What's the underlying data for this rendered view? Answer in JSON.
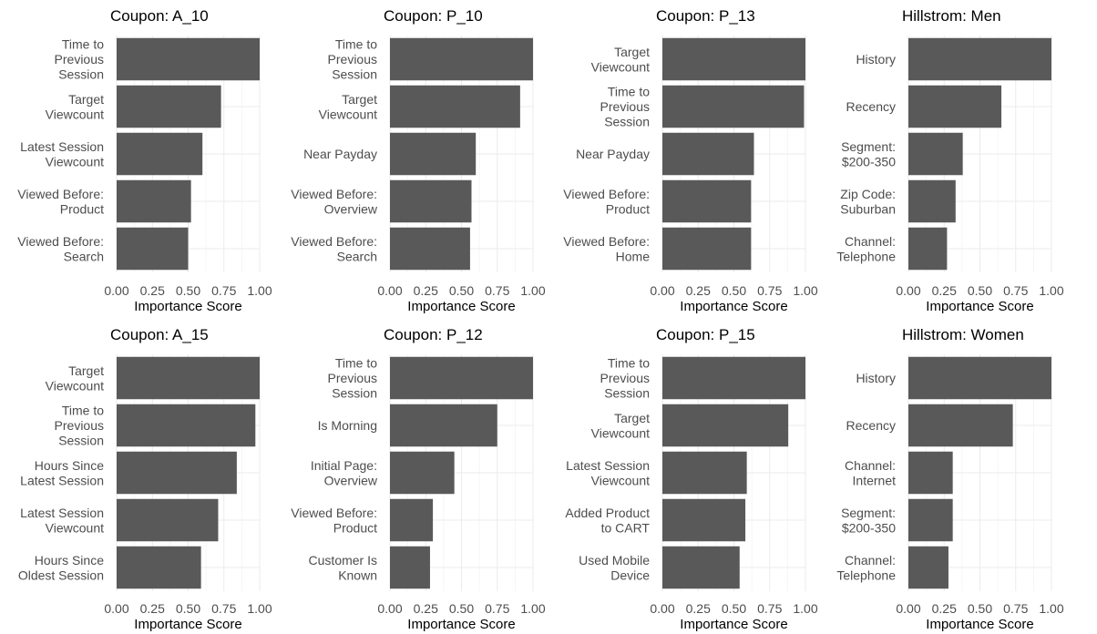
{
  "colors": {
    "bar": "#595959",
    "grid_major": "#ebebeb",
    "grid_minor": "#f3f3f3",
    "text": "#4d4d4d"
  },
  "chart_data": [
    {
      "type": "bar",
      "orientation": "horizontal",
      "title": "Coupon: A_10",
      "xlabel": "Importance Score",
      "xlim": [
        0,
        1
      ],
      "xticks": [
        "0.00",
        "0.25",
        "0.50",
        "0.75",
        "1.00"
      ],
      "categories": [
        "Time to\nPrevious\nSession",
        "Target\nViewcount",
        "Latest Session\nViewcount",
        "Viewed Before:\nProduct",
        "Viewed Before:\nSearch"
      ],
      "values": [
        1.0,
        0.73,
        0.6,
        0.52,
        0.5
      ]
    },
    {
      "type": "bar",
      "orientation": "horizontal",
      "title": "Coupon: P_10",
      "xlabel": "Importance Score",
      "xlim": [
        0,
        1
      ],
      "xticks": [
        "0.00",
        "0.25",
        "0.50",
        "0.75",
        "1.00"
      ],
      "categories": [
        "Time to\nPrevious\nSession",
        "Target\nViewcount",
        "Near Payday",
        "Viewed Before:\nOverview",
        "Viewed Before:\nSearch"
      ],
      "values": [
        1.0,
        0.91,
        0.6,
        0.57,
        0.56
      ]
    },
    {
      "type": "bar",
      "orientation": "horizontal",
      "title": "Coupon: P_13",
      "xlabel": "Importance Score",
      "xlim": [
        0,
        1
      ],
      "xticks": [
        "0.00",
        "0.25",
        "0.50",
        "0.75",
        "1.00"
      ],
      "categories": [
        "Target\nViewcount",
        "Time to\nPrevious\nSession",
        "Near Payday",
        "Viewed Before:\nProduct",
        "Viewed Before:\nHome"
      ],
      "values": [
        1.0,
        0.99,
        0.64,
        0.62,
        0.62
      ]
    },
    {
      "type": "bar",
      "orientation": "horizontal",
      "title": "Hillstrom: Men",
      "xlabel": "Importance Score",
      "xlim": [
        0,
        1
      ],
      "xticks": [
        "0.00",
        "0.25",
        "0.50",
        "0.75",
        "1.00"
      ],
      "categories": [
        "History",
        "Recency",
        "Segment:\n$200-350",
        "Zip Code:\nSuburban",
        "Channel:\nTelephone"
      ],
      "values": [
        1.0,
        0.65,
        0.38,
        0.33,
        0.27
      ]
    },
    {
      "type": "bar",
      "orientation": "horizontal",
      "title": "Coupon: A_15",
      "xlabel": "Importance Score",
      "xlim": [
        0,
        1
      ],
      "xticks": [
        "0.00",
        "0.25",
        "0.50",
        "0.75",
        "1.00"
      ],
      "categories": [
        "Target\nViewcount",
        "Time to\nPrevious\nSession",
        "Hours Since\nLatest Session",
        "Latest Session\nViewcount",
        "Hours Since\nOldest Session"
      ],
      "values": [
        1.0,
        0.97,
        0.84,
        0.71,
        0.59
      ]
    },
    {
      "type": "bar",
      "orientation": "horizontal",
      "title": "Coupon: P_12",
      "xlabel": "Importance Score",
      "xlim": [
        0,
        1
      ],
      "xticks": [
        "0.00",
        "0.25",
        "0.50",
        "0.75",
        "1.00"
      ],
      "categories": [
        "Time to\nPrevious\nSession",
        "Is Morning",
        "Initial Page:\nOverview",
        "Viewed Before:\nProduct",
        "Customer Is\nKnown"
      ],
      "values": [
        1.0,
        0.75,
        0.45,
        0.3,
        0.28
      ]
    },
    {
      "type": "bar",
      "orientation": "horizontal",
      "title": "Coupon: P_15",
      "xlabel": "Importance Score",
      "xlim": [
        0,
        1
      ],
      "xticks": [
        "0.00",
        "0.25",
        "0.50",
        "0.75",
        "1.00"
      ],
      "categories": [
        "Time to\nPrevious\nSession",
        "Target\nViewcount",
        "Latest Session\nViewcount",
        "Added Product\nto CART",
        "Used Mobile\nDevice"
      ],
      "values": [
        1.0,
        0.88,
        0.59,
        0.58,
        0.54
      ]
    },
    {
      "type": "bar",
      "orientation": "horizontal",
      "title": "Hillstrom: Women",
      "xlabel": "Importance Score",
      "xlim": [
        0,
        1
      ],
      "xticks": [
        "0.00",
        "0.25",
        "0.50",
        "0.75",
        "1.00"
      ],
      "categories": [
        "History",
        "Recency",
        "Channel:\nInternet",
        "Segment:\n$200-350",
        "Channel:\nTelephone"
      ],
      "values": [
        1.0,
        0.73,
        0.31,
        0.31,
        0.28
      ]
    }
  ]
}
